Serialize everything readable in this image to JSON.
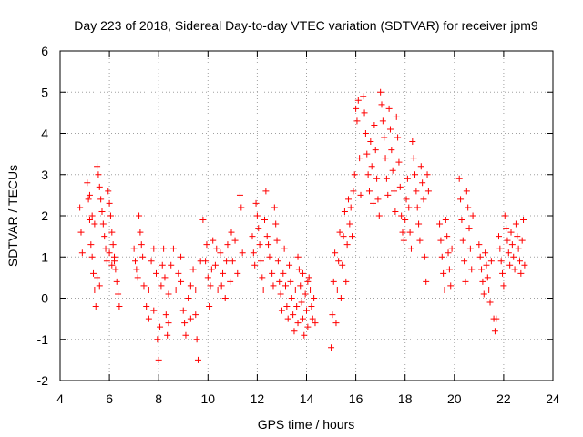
{
  "chart_data": {
    "type": "scatter",
    "title": "Day 223 of 2018, Sidereal Day-to-day VTEC variation (SDTVAR) for receiver jpm9",
    "xlabel": "GPS time / hours",
    "ylabel": "SDTVAR / TECUs",
    "xlim": [
      4,
      24
    ],
    "ylim": [
      -2,
      6
    ],
    "xticks": [
      "4",
      "6",
      "8",
      "10",
      "12",
      "14",
      "16",
      "18",
      "20",
      "22",
      "24"
    ],
    "yticks": [
      "-2",
      "-1",
      "0",
      "1",
      "2",
      "3",
      "4",
      "5",
      "6"
    ],
    "grid": true,
    "marker": "+",
    "color": "#ff0000",
    "series": [
      {
        "name": "SDTVAR",
        "points": [
          [
            4.8,
            2.2
          ],
          [
            4.85,
            1.6
          ],
          [
            4.9,
            1.1
          ],
          [
            5.1,
            2.8
          ],
          [
            5.15,
            2.4
          ],
          [
            5.2,
            1.9
          ],
          [
            5.25,
            1.3
          ],
          [
            5.3,
            1.0
          ],
          [
            5.35,
            0.6
          ],
          [
            5.4,
            0.2
          ],
          [
            5.45,
            -0.2
          ],
          [
            5.5,
            3.2
          ],
          [
            5.55,
            3.0
          ],
          [
            5.6,
            2.7
          ],
          [
            5.65,
            2.4
          ],
          [
            5.7,
            2.1
          ],
          [
            5.75,
            1.8
          ],
          [
            5.8,
            1.5
          ],
          [
            5.85,
            1.2
          ],
          [
            5.9,
            0.9
          ],
          [
            5.95,
            2.6
          ],
          [
            6.0,
            2.3
          ],
          [
            6.05,
            2.0
          ],
          [
            6.1,
            1.6
          ],
          [
            6.15,
            1.3
          ],
          [
            6.2,
            1.0
          ],
          [
            6.25,
            0.7
          ],
          [
            6.3,
            0.4
          ],
          [
            6.35,
            0.1
          ],
          [
            6.4,
            -0.2
          ],
          [
            5.5,
            0.5
          ],
          [
            5.6,
            0.3
          ],
          [
            6.0,
            1.1
          ],
          [
            6.1,
            0.8
          ],
          [
            6.2,
            0.9
          ],
          [
            5.3,
            2.0
          ],
          [
            5.4,
            1.8
          ],
          [
            5.2,
            2.5
          ],
          [
            7.0,
            1.2
          ],
          [
            7.05,
            0.9
          ],
          [
            7.1,
            0.7
          ],
          [
            7.15,
            0.5
          ],
          [
            7.2,
            2.0
          ],
          [
            7.25,
            1.6
          ],
          [
            7.3,
            1.3
          ],
          [
            7.35,
            1.0
          ],
          [
            7.4,
            0.3
          ],
          [
            7.5,
            -0.2
          ],
          [
            7.6,
            -0.5
          ],
          [
            7.7,
            0.9
          ],
          [
            7.8,
            1.2
          ],
          [
            7.9,
            0.6
          ],
          [
            7.95,
            -1.0
          ],
          [
            8.0,
            -1.5
          ],
          [
            8.05,
            -0.7
          ],
          [
            8.1,
            0.3
          ],
          [
            8.15,
            0.8
          ],
          [
            8.2,
            1.2
          ],
          [
            8.25,
            0.5
          ],
          [
            8.3,
            -0.4
          ],
          [
            8.35,
            -0.9
          ],
          [
            8.4,
            -0.6
          ],
          [
            8.5,
            0.8
          ],
          [
            8.6,
            1.2
          ],
          [
            8.7,
            0.2
          ],
          [
            8.8,
            0.6
          ],
          [
            8.9,
            1.0
          ],
          [
            9.0,
            -0.3
          ],
          [
            9.05,
            -0.6
          ],
          [
            9.1,
            -0.9
          ],
          [
            9.2,
            0.0
          ],
          [
            9.3,
            -0.5
          ],
          [
            9.4,
            0.7
          ],
          [
            9.5,
            0.2
          ],
          [
            9.55,
            -1.0
          ],
          [
            9.6,
            -1.5
          ],
          [
            9.7,
            0.9
          ],
          [
            9.8,
            1.9
          ],
          [
            7.6,
            0.2
          ],
          [
            7.8,
            -0.3
          ],
          [
            8.4,
            0.1
          ],
          [
            8.9,
            0.4
          ],
          [
            9.3,
            0.3
          ],
          [
            9.5,
            -0.4
          ],
          [
            9.9,
            0.9
          ],
          [
            9.95,
            1.3
          ],
          [
            10.0,
            0.5
          ],
          [
            10.05,
            -0.2
          ],
          [
            10.1,
            0.3
          ],
          [
            10.2,
            1.4
          ],
          [
            10.3,
            0.8
          ],
          [
            10.4,
            0.2
          ],
          [
            10.5,
            1.1
          ],
          [
            10.6,
            0.6
          ],
          [
            10.7,
            0.0
          ],
          [
            10.8,
            1.3
          ],
          [
            10.9,
            0.4
          ],
          [
            11.0,
            0.9
          ],
          [
            11.1,
            1.4
          ],
          [
            11.2,
            0.6
          ],
          [
            11.3,
            2.5
          ],
          [
            11.35,
            2.2
          ],
          [
            11.4,
            1.1
          ],
          [
            10.15,
            0.7
          ],
          [
            10.35,
            1.2
          ],
          [
            10.55,
            0.3
          ],
          [
            10.75,
            0.9
          ],
          [
            10.95,
            1.6
          ],
          [
            11.8,
            1.5
          ],
          [
            11.85,
            1.1
          ],
          [
            11.9,
            0.8
          ],
          [
            11.95,
            2.3
          ],
          [
            12.0,
            2.0
          ],
          [
            12.05,
            1.7
          ],
          [
            12.1,
            1.3
          ],
          [
            12.15,
            0.9
          ],
          [
            12.2,
            0.5
          ],
          [
            12.25,
            0.2
          ],
          [
            12.3,
            1.9
          ],
          [
            12.4,
            1.5
          ],
          [
            12.5,
            1.0
          ],
          [
            12.6,
            0.6
          ],
          [
            12.7,
            2.2
          ],
          [
            12.75,
            1.8
          ],
          [
            12.8,
            1.4
          ],
          [
            12.85,
            0.9
          ],
          [
            12.9,
            0.4
          ],
          [
            12.95,
            0.1
          ],
          [
            13.0,
            -0.3
          ],
          [
            13.05,
            0.6
          ],
          [
            13.1,
            1.2
          ],
          [
            13.15,
            0.3
          ],
          [
            13.2,
            -0.2
          ],
          [
            13.25,
            -0.5
          ],
          [
            13.3,
            0.8
          ],
          [
            13.35,
            0.4
          ],
          [
            13.4,
            0.0
          ],
          [
            13.45,
            -0.4
          ],
          [
            13.5,
            -0.8
          ],
          [
            13.55,
            0.2
          ],
          [
            13.6,
            -0.2
          ],
          [
            13.65,
            -0.6
          ],
          [
            13.7,
            0.7
          ],
          [
            13.75,
            0.3
          ],
          [
            13.8,
            -0.1
          ],
          [
            13.85,
            -0.5
          ],
          [
            13.9,
            -0.9
          ],
          [
            13.95,
            0.1
          ],
          [
            14.0,
            -0.3
          ],
          [
            14.05,
            -0.7
          ],
          [
            14.1,
            0.5
          ],
          [
            14.15,
            0.2
          ],
          [
            14.2,
            -0.2
          ],
          [
            14.25,
            -0.5
          ],
          [
            14.3,
            0.0
          ],
          [
            14.35,
            -0.6
          ],
          [
            12.35,
            2.6
          ],
          [
            12.45,
            1.3
          ],
          [
            12.65,
            0.3
          ],
          [
            13.65,
            1.0
          ],
          [
            13.85,
            0.6
          ],
          [
            14.05,
            0.4
          ],
          [
            15.0,
            -1.2
          ],
          [
            15.05,
            -0.4
          ],
          [
            15.1,
            0.4
          ],
          [
            15.15,
            1.1
          ],
          [
            15.2,
            -0.6
          ],
          [
            15.25,
            0.2
          ],
          [
            15.3,
            0.9
          ],
          [
            15.35,
            1.6
          ],
          [
            15.4,
            0.0
          ],
          [
            15.45,
            0.8
          ],
          [
            15.5,
            1.5
          ],
          [
            15.55,
            2.1
          ],
          [
            15.6,
            0.4
          ],
          [
            15.65,
            1.3
          ],
          [
            15.7,
            2.4
          ],
          [
            15.75,
            1.8
          ],
          [
            15.8,
            2.2
          ],
          [
            15.85,
            1.5
          ],
          [
            15.9,
            2.6
          ],
          [
            15.95,
            3.0
          ],
          [
            16.0,
            4.6
          ],
          [
            16.05,
            4.3
          ],
          [
            16.1,
            4.8
          ],
          [
            16.15,
            3.4
          ],
          [
            16.2,
            2.5
          ],
          [
            16.3,
            4.9
          ],
          [
            16.35,
            4.5
          ],
          [
            16.4,
            4.0
          ],
          [
            16.45,
            3.5
          ],
          [
            16.5,
            3.0
          ],
          [
            16.55,
            2.6
          ],
          [
            16.6,
            3.8
          ],
          [
            16.65,
            3.2
          ],
          [
            16.7,
            2.3
          ],
          [
            16.75,
            4.2
          ],
          [
            16.8,
            3.6
          ],
          [
            16.85,
            2.9
          ],
          [
            16.9,
            2.4
          ],
          [
            16.95,
            2.0
          ],
          [
            17.0,
            5.0
          ],
          [
            17.05,
            4.7
          ],
          [
            17.1,
            4.3
          ],
          [
            17.15,
            3.9
          ],
          [
            17.2,
            3.4
          ],
          [
            17.25,
            2.9
          ],
          [
            17.3,
            2.5
          ],
          [
            17.35,
            4.6
          ],
          [
            17.4,
            4.1
          ],
          [
            17.45,
            3.6
          ],
          [
            17.5,
            3.1
          ],
          [
            17.55,
            2.6
          ],
          [
            17.6,
            2.1
          ],
          [
            17.65,
            4.4
          ],
          [
            17.7,
            3.9
          ],
          [
            17.75,
            3.3
          ],
          [
            17.8,
            2.7
          ],
          [
            17.85,
            2.0
          ],
          [
            17.9,
            1.6
          ],
          [
            17.95,
            1.4
          ],
          [
            18.0,
            1.9
          ],
          [
            18.05,
            2.4
          ],
          [
            18.1,
            2.9
          ],
          [
            18.15,
            2.2
          ],
          [
            18.2,
            1.6
          ],
          [
            18.25,
            1.2
          ],
          [
            18.3,
            3.8
          ],
          [
            18.35,
            3.4
          ],
          [
            18.4,
            3.0
          ],
          [
            18.45,
            2.6
          ],
          [
            18.5,
            2.2
          ],
          [
            18.55,
            1.8
          ],
          [
            18.6,
            1.4
          ],
          [
            18.65,
            3.2
          ],
          [
            18.7,
            2.8
          ],
          [
            18.75,
            2.4
          ],
          [
            18.8,
            1.0
          ],
          [
            18.85,
            0.4
          ],
          [
            18.9,
            3.0
          ],
          [
            18.95,
            2.6
          ],
          [
            19.4,
            1.8
          ],
          [
            19.45,
            1.4
          ],
          [
            19.5,
            1.0
          ],
          [
            19.55,
            0.6
          ],
          [
            19.6,
            0.2
          ],
          [
            19.65,
            1.9
          ],
          [
            19.7,
            1.5
          ],
          [
            19.75,
            1.1
          ],
          [
            19.8,
            0.7
          ],
          [
            19.85,
            0.3
          ],
          [
            19.9,
            1.2
          ],
          [
            20.2,
            2.9
          ],
          [
            20.25,
            2.4
          ],
          [
            20.3,
            1.9
          ],
          [
            20.35,
            1.4
          ],
          [
            20.4,
            0.9
          ],
          [
            20.45,
            0.4
          ],
          [
            20.5,
            2.6
          ],
          [
            20.55,
            2.2
          ],
          [
            20.6,
            1.7
          ],
          [
            20.65,
            1.2
          ],
          [
            20.7,
            0.7
          ],
          [
            20.75,
            2.0
          ],
          [
            21.0,
            1.3
          ],
          [
            21.05,
            1.0
          ],
          [
            21.1,
            0.7
          ],
          [
            21.15,
            0.4
          ],
          [
            21.2,
            0.1
          ],
          [
            21.25,
            1.1
          ],
          [
            21.3,
            0.8
          ],
          [
            21.35,
            0.5
          ],
          [
            21.4,
            0.2
          ],
          [
            21.45,
            -0.1
          ],
          [
            21.5,
            0.9
          ],
          [
            21.6,
            -0.5
          ],
          [
            21.65,
            -0.8
          ],
          [
            21.7,
            -0.5
          ],
          [
            21.8,
            1.5
          ],
          [
            21.85,
            1.2
          ],
          [
            21.9,
            0.9
          ],
          [
            21.95,
            0.6
          ],
          [
            22.0,
            0.3
          ],
          [
            22.05,
            2.0
          ],
          [
            22.1,
            1.7
          ],
          [
            22.15,
            1.4
          ],
          [
            22.2,
            1.1
          ],
          [
            22.25,
            0.8
          ],
          [
            22.3,
            1.6
          ],
          [
            22.35,
            1.3
          ],
          [
            22.4,
            1.0
          ],
          [
            22.45,
            0.7
          ],
          [
            22.5,
            1.8
          ],
          [
            22.55,
            1.5
          ],
          [
            22.6,
            1.2
          ],
          [
            22.65,
            0.9
          ],
          [
            22.7,
            0.6
          ],
          [
            22.75,
            1.4
          ],
          [
            22.8,
            1.9
          ],
          [
            22.85,
            0.8
          ]
        ]
      }
    ]
  }
}
